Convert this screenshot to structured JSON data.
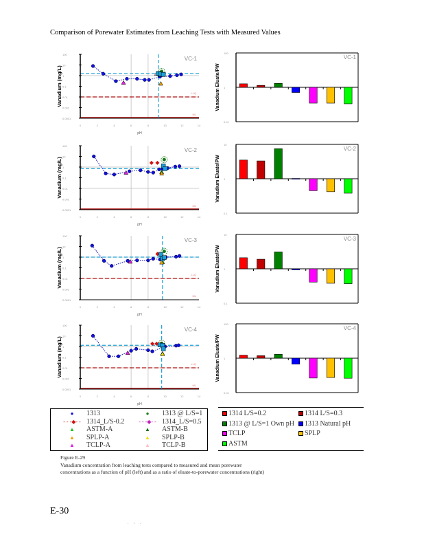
{
  "page": {
    "title": "Comparison of Porewater Estimates from Leaching Tests with Measured Values",
    "page_number": "E-30",
    "footer_marks": ". : .",
    "caption": {
      "figure": "Figure E-29",
      "text": "Vanadium concentration from leaching tests compared to measured and mean porewater concentrations as a function of pH (left) and as a ratio of eluate-to-porewater concentrations (right)"
    }
  },
  "legend_left": [
    {
      "label": "1313",
      "symbol": "circle",
      "color": "#1010e0",
      "line": false
    },
    {
      "label": "1313 @ L/S=1",
      "symbol": "circle",
      "color": "#1a7a1a",
      "line": false
    },
    {
      "label": "1314_L/S-0.2",
      "symbol": "diamond",
      "color": "#d01010",
      "line": true
    },
    {
      "label": "1314_L/S=0.5",
      "symbol": "diamond",
      "color": "#c020c0",
      "line": true
    },
    {
      "label": "ASTM-A",
      "symbol": "triangle",
      "color": "#20c020",
      "line": false
    },
    {
      "label": "ASTM-B",
      "symbol": "triangle",
      "color": "#1a6a1a",
      "line": false
    },
    {
      "label": "SPLP-A",
      "symbol": "triangle",
      "color": "#f0a000",
      "line": false
    },
    {
      "label": "SPLP-B",
      "symbol": "triangle",
      "color": "#f0e000",
      "line": false
    },
    {
      "label": "TCLP-A",
      "symbol": "triangle",
      "color": "#e020e0",
      "line": false
    },
    {
      "label": "TCLP-B",
      "symbol": "triangle",
      "color": "#ffc0c0",
      "line": false
    }
  ],
  "legend_right": [
    {
      "label": "1314 L/S=0.2",
      "color": "#ff0000"
    },
    {
      "label": "1314 L/S=0.3",
      "color": "#c00000"
    },
    {
      "label": "1313 @ L/S=1 Own pH",
      "color": "#008000"
    },
    {
      "label": "1313 Natural pH",
      "color": "#0000ff"
    },
    {
      "label": "TCLP",
      "color": "#ff00ff"
    },
    {
      "label": "SPLP",
      "color": "#ffc000"
    },
    {
      "label": "ASTM",
      "color": "#00ff00"
    }
  ],
  "chart_data": [
    {
      "type": "scatter",
      "panel": "VC-1",
      "title": "VC-1",
      "xlabel": "pH",
      "ylabel": "Vanadium (mg/L)",
      "xlim": [
        0,
        14
      ],
      "ylim": [
        0.0001,
        100
      ],
      "yscale": "log",
      "grid": true,
      "ref_lines": {
        "porewater_mean": 1.6,
        "measured_pH": 9.2,
        "LLQ": 0.01,
        "ML": 0.0001
      },
      "ref_labels": {
        "LLQ": "LLQ",
        "ML": "ML"
      },
      "series": [
        {
          "name": "1313",
          "x": [
            1.5,
            2.7,
            4.2,
            5.5,
            6.7,
            7.6,
            8.1,
            9.4,
            10.6,
            11.4,
            11.9
          ],
          "y": [
            8,
            1.5,
            0.3,
            0.5,
            0.5,
            0.4,
            0.4,
            0.8,
            0.9,
            1.1,
            1.3
          ]
        },
        {
          "name": "1313 @ L/S=1",
          "x": [
            9.6
          ],
          "y": [
            2.5
          ]
        },
        {
          "name": "1314_L/S-0.2",
          "x": [],
          "y": []
        },
        {
          "name": "1314_L/S=0.5",
          "x": [],
          "y": []
        },
        {
          "name": "ASTM-A",
          "x": [
            9.4
          ],
          "y": [
            1.2
          ]
        },
        {
          "name": "ASTM-B",
          "x": [
            9.3
          ],
          "y": [
            1.4
          ]
        },
        {
          "name": "SPLP-A",
          "x": [
            9.5
          ],
          "y": [
            0.18
          ]
        },
        {
          "name": "SPLP-B",
          "x": [],
          "y": []
        },
        {
          "name": "TCLP-A",
          "x": [
            5.1
          ],
          "y": [
            0.22
          ]
        },
        {
          "name": "TCLP-B",
          "x": [
            9.0
          ],
          "y": [
            1.5
          ]
        },
        {
          "name": "1313 Natural",
          "x": [
            9.2,
            9.5,
            9.8
          ],
          "y": [
            1.6,
            1.4,
            1.3
          ]
        }
      ]
    },
    {
      "type": "bar",
      "panel": "VC-1",
      "title": "VC-1",
      "ylabel": "Vanadium Eluate/PW",
      "yscale": "log",
      "ylim": [
        0.01,
        100
      ],
      "categories": [
        "1314 L/S=0.2",
        "1314 L/S=0.3",
        "1313 @ L/S=1 Own pH",
        "1313 Natural pH",
        "TCLP",
        "SPLP",
        "ASTM"
      ],
      "values": [
        1.6,
        1.3,
        1.7,
        0.5,
        0.12,
        0.12,
        0.11
      ]
    },
    {
      "type": "scatter",
      "panel": "VC-2",
      "title": "VC-2",
      "xlabel": "pH",
      "ylabel": "Vanadium (mg/L)",
      "xlim": [
        0,
        14
      ],
      "ylim": [
        0.0001,
        100
      ],
      "yscale": "log",
      "grid": true,
      "ref_lines": {
        "porewater_mean": 0.7,
        "measured_pH": null,
        "LLQ": null,
        "ML": 0.0001
      },
      "ref_labels": {
        "LLQ": "LLQ",
        "ML": "ML"
      },
      "series": [
        {
          "name": "1313",
          "x": [
            1.6,
            3.0,
            4.0,
            5.8,
            7.1,
            8.0,
            8.6,
            9.3,
            9.7,
            10.3,
            11.2,
            11.7
          ],
          "y": [
            10,
            0.25,
            0.2,
            0.4,
            0.5,
            0.35,
            0.3,
            0.6,
            0.7,
            0.8,
            1.1,
            1.2
          ]
        },
        {
          "name": "1313 @ L/S=1",
          "x": [
            9.9
          ],
          "y": [
            5
          ]
        },
        {
          "name": "1314_L/S-0.2",
          "x": [
            8.4,
            9.1
          ],
          "y": [
            2.5,
            2.5
          ]
        },
        {
          "name": "ASTM-A",
          "x": [
            9.6
          ],
          "y": [
            0.35
          ]
        },
        {
          "name": "SPLP-A",
          "x": [
            9.6
          ],
          "y": [
            0.25
          ]
        },
        {
          "name": "TCLP-A",
          "x": [
            5.4
          ],
          "y": [
            0.3
          ]
        },
        {
          "name": "1313 Natural",
          "x": [
            9.8,
            10.0
          ],
          "y": [
            1.3,
            0.7
          ]
        }
      ]
    },
    {
      "type": "bar",
      "panel": "VC-2",
      "title": "VC-2",
      "ylabel": "Vanadium Eluate/PW",
      "yscale": "log",
      "ylim": [
        0.1,
        10
      ],
      "categories": [
        "1314 L/S=0.2",
        "1314 L/S=0.3",
        "1313 @ L/S=1 Own pH",
        "1313 Natural pH",
        "TCLP",
        "SPLP",
        "ASTM"
      ],
      "values": [
        3.5,
        3.3,
        7.5,
        1.02,
        0.45,
        0.42,
        0.38
      ]
    },
    {
      "type": "scatter",
      "panel": "VC-3",
      "title": "VC-3",
      "xlabel": "pH",
      "ylabel": "Vanadium (mg/L)",
      "xlim": [
        0,
        14
      ],
      "ylim": [
        0.0001,
        100
      ],
      "yscale": "log",
      "grid": true,
      "ref_lines": {
        "porewater_mean": 1.0,
        "measured_pH": 9.7,
        "LLQ": 0.01,
        "ML": null
      },
      "ref_labels": {
        "LLQ": "LLQ",
        "ML": "ML"
      },
      "series": [
        {
          "name": "1313",
          "x": [
            1.4,
            2.8,
            3.7,
            5.6,
            6.7,
            8.0,
            8.6,
            9.4,
            10.1,
            11.3,
            11.7
          ],
          "y": [
            12,
            0.45,
            0.15,
            0.45,
            0.5,
            0.5,
            0.7,
            0.6,
            1.0,
            1.1,
            1.3
          ]
        },
        {
          "name": "1313 @ L/S=1",
          "x": [
            9.9
          ],
          "y": [
            3.5
          ]
        },
        {
          "name": "1314_L/S-0.2",
          "x": [
            9.1,
            9.3
          ],
          "y": [
            2,
            2
          ]
        },
        {
          "name": "ASTM-A",
          "x": [
            9.7
          ],
          "y": [
            0.35
          ]
        },
        {
          "name": "SPLP-A",
          "x": [
            9.6
          ],
          "y": [
            0.32
          ]
        },
        {
          "name": "TCLP-A",
          "x": [
            5.9
          ],
          "y": [
            0.38
          ]
        },
        {
          "name": "1313 Natural",
          "x": [
            9.5,
            9.7,
            9.9
          ],
          "y": [
            1.8,
            0.7,
            0.9
          ]
        }
      ]
    },
    {
      "type": "bar",
      "panel": "VC-3",
      "title": "VC-3",
      "ylabel": "Vanadium Eluate/PW",
      "yscale": "log",
      "ylim": [
        0.1,
        10
      ],
      "categories": [
        "1314 L/S=0.2",
        "1314 L/S=0.3",
        "1313 @ L/S=1 Own pH",
        "1313 Natural pH",
        "TCLP",
        "SPLP",
        "ASTM"
      ],
      "values": [
        2.1,
        1.9,
        3.1,
        0.93,
        0.41,
        0.38,
        0.37
      ]
    },
    {
      "type": "scatter",
      "panel": "VC-4",
      "title": "VC-4",
      "xlabel": "pH",
      "ylabel": "Vanadium (mg/L)",
      "xlim": [
        0,
        14
      ],
      "ylim": [
        0.0001,
        100
      ],
      "yscale": "log",
      "grid": true,
      "ref_lines": {
        "porewater_mean": 1.3,
        "measured_pH": 9.6,
        "LLQ": 0.01,
        "ML": 0.0001
      },
      "ref_labels": {
        "LLQ": "LLQ",
        "ML": "ML"
      },
      "series": [
        {
          "name": "1313",
          "x": [
            1.5,
            3.4,
            4.5,
            6.0,
            6.6,
            8.0,
            8.5,
            10.0,
            11.3,
            11.6
          ],
          "y": [
            10,
            0.12,
            0.12,
            0.4,
            0.6,
            0.45,
            0.35,
            1.0,
            1.2,
            1.3
          ]
        },
        {
          "name": "1313 @ L/S=1",
          "x": [
            9.6
          ],
          "y": [
            2
          ]
        },
        {
          "name": "1314_L/S-0.2",
          "x": [
            8.5,
            9.0
          ],
          "y": [
            1.8,
            1.8
          ]
        },
        {
          "name": "ASTM-A",
          "x": [
            9.7
          ],
          "y": [
            0.22
          ]
        },
        {
          "name": "SPLP-B",
          "x": [
            9.7
          ],
          "y": [
            0.2
          ]
        },
        {
          "name": "TCLP-A",
          "x": [
            5.6
          ],
          "y": [
            0.25
          ]
        },
        {
          "name": "1313 Natural",
          "x": [
            9.4,
            9.7,
            9.8
          ],
          "y": [
            1.4,
            1.3,
            0.6
          ]
        }
      ]
    },
    {
      "type": "bar",
      "panel": "VC-4",
      "title": "VC-4",
      "ylabel": "Vanadium Eluate/PW",
      "yscale": "log",
      "ylim": [
        0.01,
        100
      ],
      "categories": [
        "1314 L/S=0.2",
        "1314 L/S=0.3",
        "1313 @ L/S=1 Own pH",
        "1313 Natural pH",
        "TCLP",
        "SPLP",
        "ASTM"
      ],
      "values": [
        1.5,
        1.4,
        1.7,
        0.45,
        0.07,
        0.075,
        0.068
      ]
    }
  ]
}
